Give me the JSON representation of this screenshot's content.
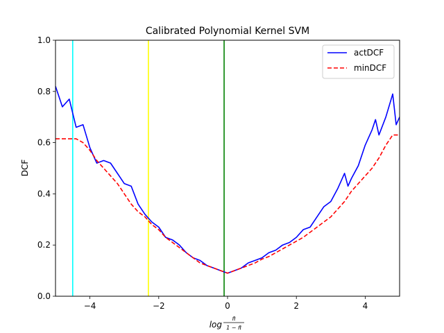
{
  "chart_data": {
    "type": "line",
    "title": "Calibrated Polynomial Kernel SVM",
    "xlabel_main": "log",
    "xlabel_num": "π̃",
    "xlabel_den": "1 − π̃",
    "ylabel": "DCF",
    "xlim": [
      -5,
      5
    ],
    "ylim": [
      0,
      1
    ],
    "xticks": [
      -4,
      -2,
      0,
      2,
      4
    ],
    "xtick_labels": [
      "−4",
      "−2",
      "0",
      "2",
      "4"
    ],
    "yticks": [
      0.0,
      0.2,
      0.4,
      0.6,
      0.8,
      1.0
    ],
    "ytick_labels": [
      "0.0",
      "0.2",
      "0.4",
      "0.6",
      "0.8",
      "1.0"
    ],
    "grid": false,
    "legend_position": "top-right",
    "vlines": [
      {
        "x": -4.5,
        "color": "#00ffff"
      },
      {
        "x": -2.3,
        "color": "#ffff00"
      },
      {
        "x": -0.1,
        "color": "#008000"
      }
    ],
    "series": [
      {
        "name": "actDCF",
        "color": "#0000ff",
        "style": "solid",
        "x": [
          -5.0,
          -4.8,
          -4.6,
          -4.4,
          -4.2,
          -4.0,
          -3.8,
          -3.6,
          -3.4,
          -3.2,
          -3.0,
          -2.8,
          -2.6,
          -2.4,
          -2.2,
          -2.0,
          -1.8,
          -1.6,
          -1.4,
          -1.2,
          -1.0,
          -0.8,
          -0.6,
          -0.4,
          -0.2,
          0.0,
          0.2,
          0.4,
          0.6,
          0.8,
          1.0,
          1.2,
          1.4,
          1.6,
          1.8,
          2.0,
          2.2,
          2.4,
          2.6,
          2.8,
          3.0,
          3.2,
          3.4,
          3.5,
          3.6,
          3.8,
          4.0,
          4.2,
          4.3,
          4.4,
          4.6,
          4.8,
          4.9,
          5.0
        ],
        "values": [
          0.82,
          0.74,
          0.77,
          0.66,
          0.67,
          0.58,
          0.52,
          0.53,
          0.52,
          0.48,
          0.44,
          0.43,
          0.36,
          0.32,
          0.29,
          0.27,
          0.23,
          0.22,
          0.2,
          0.17,
          0.15,
          0.14,
          0.12,
          0.11,
          0.1,
          0.09,
          0.1,
          0.11,
          0.13,
          0.14,
          0.15,
          0.17,
          0.18,
          0.2,
          0.21,
          0.23,
          0.26,
          0.27,
          0.31,
          0.35,
          0.37,
          0.42,
          0.48,
          0.43,
          0.46,
          0.51,
          0.59,
          0.65,
          0.69,
          0.63,
          0.7,
          0.79,
          0.67,
          0.7
        ]
      },
      {
        "name": "minDCF",
        "color": "#ff0000",
        "style": "dashed",
        "x": [
          -5.0,
          -4.8,
          -4.6,
          -4.4,
          -4.2,
          -4.0,
          -3.8,
          -3.6,
          -3.4,
          -3.2,
          -3.0,
          -2.8,
          -2.6,
          -2.4,
          -2.2,
          -2.0,
          -1.8,
          -1.6,
          -1.4,
          -1.2,
          -1.0,
          -0.8,
          -0.6,
          -0.4,
          -0.2,
          0.0,
          0.2,
          0.4,
          0.6,
          0.8,
          1.0,
          1.2,
          1.4,
          1.6,
          1.8,
          2.0,
          2.2,
          2.4,
          2.6,
          2.8,
          3.0,
          3.2,
          3.4,
          3.6,
          3.8,
          4.0,
          4.2,
          4.4,
          4.6,
          4.8,
          5.0
        ],
        "values": [
          0.615,
          0.615,
          0.615,
          0.615,
          0.6,
          0.57,
          0.53,
          0.5,
          0.47,
          0.44,
          0.4,
          0.36,
          0.33,
          0.31,
          0.28,
          0.26,
          0.23,
          0.21,
          0.19,
          0.17,
          0.15,
          0.13,
          0.12,
          0.11,
          0.1,
          0.09,
          0.1,
          0.11,
          0.12,
          0.13,
          0.145,
          0.155,
          0.17,
          0.185,
          0.2,
          0.215,
          0.23,
          0.25,
          0.27,
          0.29,
          0.31,
          0.34,
          0.37,
          0.41,
          0.44,
          0.47,
          0.5,
          0.54,
          0.59,
          0.63,
          0.63
        ]
      }
    ]
  }
}
